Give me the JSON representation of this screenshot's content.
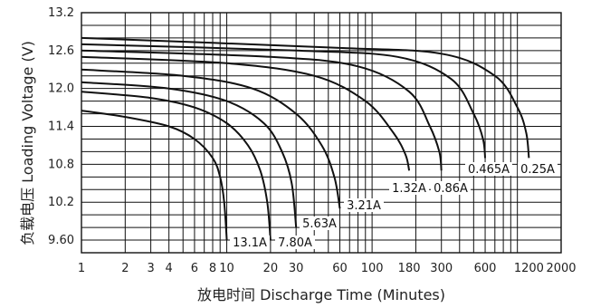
{
  "chart_data": {
    "type": "line",
    "xlabel": "放电时间 Discharge Time (Minutes)",
    "ylabel": "负载电压 Loading Voltage (V)",
    "xscale": "log",
    "xlim": [
      1,
      2000
    ],
    "ylim": [
      9.4,
      13.2
    ],
    "grid": true,
    "xticks": [
      1,
      2,
      3,
      4,
      6,
      8,
      10,
      20,
      30,
      60,
      100,
      180,
      300,
      600,
      1200,
      2000
    ],
    "xtick_labels": [
      "1",
      "2",
      "3",
      "4",
      "6",
      "8",
      "10",
      "20",
      "30",
      "60",
      "100",
      "180",
      "300",
      "600",
      "1200",
      "2000"
    ],
    "yticks": [
      13.2,
      12.6,
      12.0,
      11.4,
      10.8,
      10.2,
      9.6
    ],
    "ytick_labels": [
      "13.2",
      "12.6",
      "12.0",
      "11.4",
      "10.8",
      "10.2",
      "9.60"
    ],
    "series": [
      {
        "name": "13.1A",
        "x": [
          1,
          2,
          4,
          6,
          8,
          9,
          9.6,
          10
        ],
        "y": [
          11.65,
          11.55,
          11.4,
          11.2,
          10.9,
          10.6,
          10.2,
          9.6
        ]
      },
      {
        "name": "7.80A",
        "x": [
          1,
          3,
          6,
          10,
          14,
          17,
          19,
          20
        ],
        "y": [
          11.95,
          11.85,
          11.7,
          11.45,
          11.1,
          10.7,
          10.2,
          9.6
        ]
      },
      {
        "name": "5.63A",
        "x": [
          1,
          4,
          10,
          18,
          24,
          28,
          30
        ],
        "y": [
          12.1,
          12.0,
          11.8,
          11.45,
          11.0,
          10.5,
          9.8
        ]
      },
      {
        "name": "3.21A",
        "x": [
          1,
          5,
          15,
          30,
          45,
          55,
          60
        ],
        "y": [
          12.3,
          12.2,
          12.0,
          11.6,
          11.1,
          10.6,
          10.1
        ]
      },
      {
        "name": "1.32A",
        "x": [
          1,
          10,
          40,
          90,
          140,
          170,
          180
        ],
        "y": [
          12.5,
          12.4,
          12.2,
          11.8,
          11.3,
          10.95,
          10.7
        ]
      },
      {
        "name": "0.86A",
        "x": [
          1,
          20,
          80,
          180,
          250,
          290,
          300
        ],
        "y": [
          12.6,
          12.5,
          12.35,
          11.95,
          11.4,
          11.0,
          10.7
        ]
      },
      {
        "name": "0.465A",
        "x": [
          1,
          30,
          150,
          350,
          500,
          580,
          600
        ],
        "y": [
          12.7,
          12.6,
          12.5,
          12.15,
          11.6,
          11.2,
          10.9
        ]
      },
      {
        "name": "0.25A",
        "x": [
          1,
          50,
          300,
          700,
          1000,
          1150,
          1200
        ],
        "y": [
          12.8,
          12.65,
          12.55,
          12.2,
          11.7,
          11.3,
          10.9
        ]
      }
    ]
  }
}
